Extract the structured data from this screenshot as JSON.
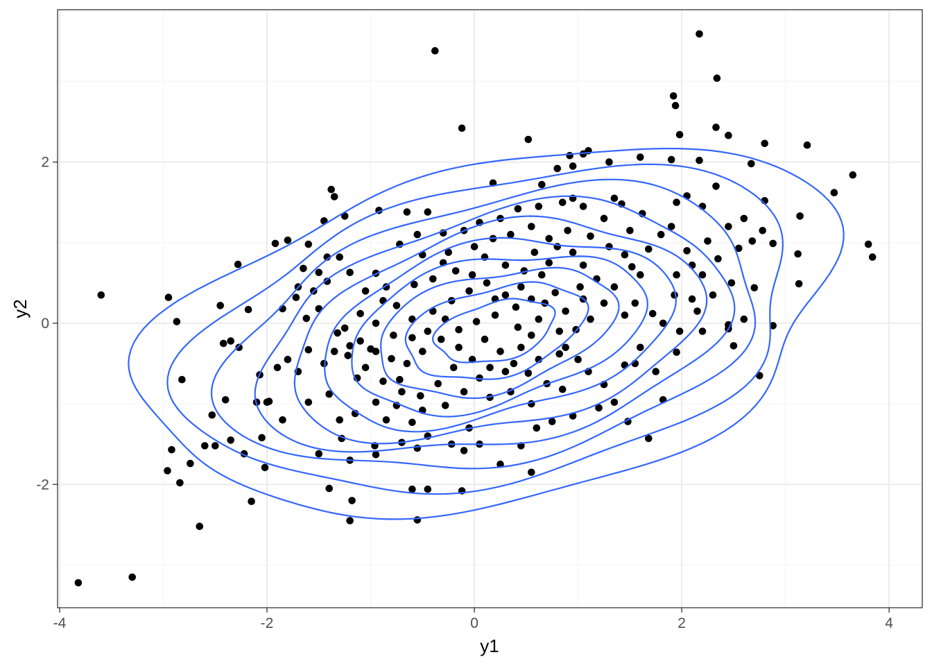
{
  "chart_data": {
    "type": "scatter",
    "overlay": "2d-density-contours",
    "xlabel": "y1",
    "ylabel": "y2",
    "xlim": [
      -4.02,
      4.32
    ],
    "ylim": [
      -3.53,
      3.89
    ],
    "x_ticks": [
      -4,
      -2,
      0,
      2,
      4
    ],
    "y_ticks": [
      -2,
      0,
      2
    ],
    "x_tick_labels": [
      "-4",
      "-2",
      "0",
      "2",
      "4"
    ],
    "y_tick_labels": [
      "-2",
      "0",
      "2"
    ],
    "grid": true,
    "theme": "bw",
    "colors": {
      "points": "#000000",
      "contours": "#3366FF",
      "grid_major": "#EBEBEB",
      "grid_minor": "#F5F5F5",
      "panel_border": "#333333"
    },
    "contour_params": {
      "center": [
        0.2,
        -0.1
      ],
      "angle_deg": 21,
      "sd_major": 1.33,
      "sd_minor": 0.78,
      "levels_r": [
        0.45,
        0.68,
        0.9,
        1.12,
        1.33,
        1.55,
        1.78,
        2.02,
        2.3,
        2.62
      ]
    },
    "points": [
      {
        "x": -3.82,
        "y": -3.22
      },
      {
        "x": -3.3,
        "y": -3.15
      },
      {
        "x": -3.6,
        "y": 0.35
      },
      {
        "x": -2.95,
        "y": 0.32
      },
      {
        "x": -2.87,
        "y": 0.02
      },
      {
        "x": -2.82,
        "y": -0.7
      },
      {
        "x": -2.65,
        "y": -2.52
      },
      {
        "x": -2.92,
        "y": -1.57
      },
      {
        "x": -2.96,
        "y": -1.83
      },
      {
        "x": -2.84,
        "y": -1.98
      },
      {
        "x": -2.74,
        "y": -1.74
      },
      {
        "x": -2.5,
        "y": -1.52
      },
      {
        "x": -2.53,
        "y": -1.14
      },
      {
        "x": -2.45,
        "y": 0.22
      },
      {
        "x": -2.35,
        "y": -0.22
      },
      {
        "x": -2.27,
        "y": -0.3
      },
      {
        "x": -2.28,
        "y": 0.73
      },
      {
        "x": -2.18,
        "y": 0.17
      },
      {
        "x": -2.07,
        "y": -0.64
      },
      {
        "x": -2.1,
        "y": -0.98
      },
      {
        "x": -2.15,
        "y": -2.21
      },
      {
        "x": -2.05,
        "y": -1.42
      },
      {
        "x": -2.02,
        "y": -1.79
      },
      {
        "x": -1.98,
        "y": -0.97
      },
      {
        "x": -1.92,
        "y": 0.99
      },
      {
        "x": -1.8,
        "y": 1.03
      },
      {
        "x": -0.38,
        "y": 3.38
      },
      {
        "x": 2.17,
        "y": 3.59
      },
      {
        "x": 2.34,
        "y": 3.04
      },
      {
        "x": 1.92,
        "y": 2.82
      },
      {
        "x": 1.94,
        "y": 2.7
      },
      {
        "x": -0.12,
        "y": 2.42
      },
      {
        "x": 0.52,
        "y": 2.28
      },
      {
        "x": 1.98,
        "y": 2.34
      },
      {
        "x": 2.33,
        "y": 2.43
      },
      {
        "x": 2.45,
        "y": 2.33
      },
      {
        "x": 2.8,
        "y": 2.23
      },
      {
        "x": 3.21,
        "y": 2.21
      },
      {
        "x": 2.67,
        "y": 1.98
      },
      {
        "x": 2.17,
        "y": 2.02
      },
      {
        "x": 1.9,
        "y": 2.03
      },
      {
        "x": 1.6,
        "y": 2.06
      },
      {
        "x": 1.3,
        "y": 2.0
      },
      {
        "x": 1.1,
        "y": 2.14
      },
      {
        "x": 0.92,
        "y": 2.08
      },
      {
        "x": 0.8,
        "y": 1.92
      },
      {
        "x": 0.18,
        "y": 1.74
      },
      {
        "x": -1.38,
        "y": 1.66
      },
      {
        "x": -1.35,
        "y": 1.57
      },
      {
        "x": 2.33,
        "y": 1.7
      },
      {
        "x": 3.47,
        "y": 1.62
      },
      {
        "x": 3.65,
        "y": 1.84
      },
      {
        "x": 3.8,
        "y": 0.98
      },
      {
        "x": 3.84,
        "y": 0.82
      },
      {
        "x": 3.14,
        "y": 1.33
      },
      {
        "x": 3.12,
        "y": 0.86
      },
      {
        "x": 3.13,
        "y": 0.49
      },
      {
        "x": 2.88,
        "y": 0.99
      },
      {
        "x": 2.8,
        "y": 1.52
      },
      {
        "x": 2.78,
        "y": 1.15
      },
      {
        "x": 2.68,
        "y": 1.02
      },
      {
        "x": 2.7,
        "y": 0.44
      },
      {
        "x": 2.55,
        "y": 0.93
      },
      {
        "x": 2.48,
        "y": 0.5
      },
      {
        "x": 2.88,
        "y": -0.03
      },
      {
        "x": 2.45,
        "y": -0.07
      },
      {
        "x": 2.5,
        "y": -0.28
      },
      {
        "x": 2.75,
        "y": -0.65
      },
      {
        "x": 2.2,
        "y": -0.1
      },
      {
        "x": 1.95,
        "y": -0.36
      },
      {
        "x": 1.82,
        "y": -0.95
      },
      {
        "x": 1.68,
        "y": -1.43
      },
      {
        "x": 1.48,
        "y": -1.22
      },
      {
        "x": -1.45,
        "y": 1.27
      },
      {
        "x": -1.25,
        "y": 1.33
      },
      {
        "x": -0.92,
        "y": 1.4
      },
      {
        "x": -0.65,
        "y": 1.38
      },
      {
        "x": -0.45,
        "y": 1.38
      },
      {
        "x": -1.65,
        "y": 0.68
      },
      {
        "x": -1.7,
        "y": 0.45
      },
      {
        "x": -1.72,
        "y": 0.32
      },
      {
        "x": -1.5,
        "y": 0.63
      },
      {
        "x": -1.42,
        "y": 0.52
      },
      {
        "x": -1.3,
        "y": 0.82
      },
      {
        "x": -1.2,
        "y": 0.63
      },
      {
        "x": -1.05,
        "y": 0.4
      },
      {
        "x": -0.88,
        "y": 0.28
      },
      {
        "x": -1.62,
        "y": 0.06
      },
      {
        "x": -1.5,
        "y": 0.18
      },
      {
        "x": -1.25,
        "y": -0.06
      },
      {
        "x": -1.6,
        "y": -0.33
      },
      {
        "x": -1.45,
        "y": -0.5
      },
      {
        "x": -1.35,
        "y": -0.35
      },
      {
        "x": -1.22,
        "y": -0.4
      },
      {
        "x": -1.1,
        "y": -0.22
      },
      {
        "x": -1.0,
        "y": -0.32
      },
      {
        "x": -0.8,
        "y": -0.44
      },
      {
        "x": -0.72,
        "y": -0.7
      },
      {
        "x": -1.6,
        "y": -0.98
      },
      {
        "x": -1.4,
        "y": -0.88
      },
      {
        "x": -1.13,
        "y": -0.68
      },
      {
        "x": -0.95,
        "y": -0.98
      },
      {
        "x": -0.75,
        "y": -1.02
      },
      {
        "x": -1.3,
        "y": -1.2
      },
      {
        "x": -1.15,
        "y": -1.12
      },
      {
        "x": -0.85,
        "y": -1.2
      },
      {
        "x": -0.6,
        "y": -1.23
      },
      {
        "x": -1.28,
        "y": -1.43
      },
      {
        "x": -0.96,
        "y": -1.52
      },
      {
        "x": -0.7,
        "y": -1.48
      },
      {
        "x": -0.45,
        "y": -1.4
      },
      {
        "x": -1.5,
        "y": -1.62
      },
      {
        "x": -1.2,
        "y": -1.7
      },
      {
        "x": -0.95,
        "y": -1.63
      },
      {
        "x": -0.55,
        "y": -1.55
      },
      {
        "x": -0.22,
        "y": -1.5
      },
      {
        "x": -1.4,
        "y": -2.05
      },
      {
        "x": -1.18,
        "y": -2.2
      },
      {
        "x": -1.2,
        "y": -2.45
      },
      {
        "x": -0.6,
        "y": -2.06
      },
      {
        "x": -0.45,
        "y": -2.06
      },
      {
        "x": -0.55,
        "y": -2.44
      },
      {
        "x": -0.1,
        "y": -1.58
      },
      {
        "x": 0.05,
        "y": -1.5
      },
      {
        "x": -0.05,
        "y": -1.3
      },
      {
        "x": 0.25,
        "y": -1.75
      },
      {
        "x": -0.12,
        "y": -2.08
      },
      {
        "x": 0.55,
        "y": -1.85
      },
      {
        "x": 0.45,
        "y": -1.52
      },
      {
        "x": 0.6,
        "y": -1.3
      },
      {
        "x": 0.75,
        "y": -1.22
      },
      {
        "x": 0.95,
        "y": -1.15
      },
      {
        "x": 1.2,
        "y": -1.05
      },
      {
        "x": 1.35,
        "y": -0.98
      },
      {
        "x": 1.25,
        "y": -0.76
      },
      {
        "x": 1.1,
        "y": -0.6
      },
      {
        "x": 1.0,
        "y": -0.45
      },
      {
        "x": 0.88,
        "y": -0.3
      },
      {
        "x": 0.82,
        "y": -0.1
      },
      {
        "x": 1.45,
        "y": -0.52
      },
      {
        "x": 1.55,
        "y": -0.5
      },
      {
        "x": 1.75,
        "y": -0.6
      },
      {
        "x": 1.6,
        "y": -0.3
      },
      {
        "x": 1.82,
        "y": 0.0
      },
      {
        "x": 1.72,
        "y": 0.12
      },
      {
        "x": 1.93,
        "y": 0.35
      },
      {
        "x": 1.55,
        "y": 0.25
      },
      {
        "x": 1.45,
        "y": 0.1
      },
      {
        "x": 1.35,
        "y": 0.45
      },
      {
        "x": 1.52,
        "y": 0.7
      },
      {
        "x": 1.68,
        "y": 0.92
      },
      {
        "x": 1.8,
        "y": 1.1
      },
      {
        "x": 1.9,
        "y": 1.2
      },
      {
        "x": 1.62,
        "y": 1.36
      },
      {
        "x": 1.42,
        "y": 1.48
      },
      {
        "x": 1.25,
        "y": 1.3
      },
      {
        "x": 1.05,
        "y": 1.45
      },
      {
        "x": 0.85,
        "y": 1.5
      },
      {
        "x": 0.62,
        "y": 1.45
      },
      {
        "x": 0.42,
        "y": 1.42
      },
      {
        "x": 0.25,
        "y": 1.3
      },
      {
        "x": 0.05,
        "y": 1.25
      },
      {
        "x": -0.1,
        "y": 1.15
      },
      {
        "x": -0.3,
        "y": 1.12
      },
      {
        "x": -0.55,
        "y": 1.1
      },
      {
        "x": -0.72,
        "y": 0.98
      },
      {
        "x": -0.5,
        "y": 0.85
      },
      {
        "x": -0.3,
        "y": 0.75
      },
      {
        "x": -0.18,
        "y": 0.65
      },
      {
        "x": 0.1,
        "y": 0.82
      },
      {
        "x": 0.3,
        "y": 0.72
      },
      {
        "x": 0.48,
        "y": 0.65
      },
      {
        "x": 0.65,
        "y": 0.6
      },
      {
        "x": 0.8,
        "y": 0.95
      },
      {
        "x": 0.95,
        "y": 0.88
      },
      {
        "x": 1.05,
        "y": 0.72
      },
      {
        "x": 1.18,
        "y": 0.55
      },
      {
        "x": 1.02,
        "y": 0.45
      },
      {
        "x": 0.78,
        "y": 0.38
      },
      {
        "x": 0.55,
        "y": 0.3
      },
      {
        "x": 0.4,
        "y": 0.2
      },
      {
        "x": 0.2,
        "y": 0.1
      },
      {
        "x": 0.02,
        "y": 0.02
      },
      {
        "x": -0.15,
        "y": -0.08
      },
      {
        "x": -0.32,
        "y": -0.2
      },
      {
        "x": -0.5,
        "y": -0.35
      },
      {
        "x": -0.65,
        "y": -0.5
      },
      {
        "x": 0.1,
        "y": -0.2
      },
      {
        "x": 0.25,
        "y": -0.35
      },
      {
        "x": 0.38,
        "y": -0.5
      },
      {
        "x": 0.52,
        "y": -0.62
      },
      {
        "x": 0.7,
        "y": -0.75
      },
      {
        "x": 0.55,
        "y": -0.15
      },
      {
        "x": 0.62,
        "y": 0.05
      },
      {
        "x": 0.42,
        "y": -0.05
      },
      {
        "x": 0.3,
        "y": 0.35
      },
      {
        "x": 0.12,
        "y": 0.5
      },
      {
        "x": -0.05,
        "y": 0.4
      },
      {
        "x": -0.22,
        "y": 0.28
      },
      {
        "x": -0.4,
        "y": 0.15
      },
      {
        "x": -0.6,
        "y": 0.05
      },
      {
        "x": -0.75,
        "y": 0.22
      },
      {
        "x": -0.85,
        "y": 0.45
      },
      {
        "x": -0.95,
        "y": 0.62
      },
      {
        "x": -0.58,
        "y": 0.48
      },
      {
        "x": -0.4,
        "y": 0.55
      },
      {
        "x": -0.25,
        "y": 0.88
      },
      {
        "x": 0.0,
        "y": 0.95
      },
      {
        "x": 0.18,
        "y": 1.05
      },
      {
        "x": 0.35,
        "y": 1.1
      },
      {
        "x": 0.55,
        "y": 1.2
      },
      {
        "x": 0.72,
        "y": 1.05
      },
      {
        "x": 0.9,
        "y": 1.15
      },
      {
        "x": 1.12,
        "y": 1.08
      },
      {
        "x": 1.3,
        "y": 0.95
      },
      {
        "x": 1.45,
        "y": 0.85
      },
      {
        "x": 1.6,
        "y": 0.6
      },
      {
        "x": 1.25,
        "y": 0.25
      },
      {
        "x": 1.12,
        "y": 0.05
      },
      {
        "x": 0.98,
        "y": -0.08
      },
      {
        "x": 0.82,
        "y": -0.38
      },
      {
        "x": 0.62,
        "y": -0.45
      },
      {
        "x": 0.45,
        "y": -0.3
      },
      {
        "x": 0.3,
        "y": -0.6
      },
      {
        "x": 0.15,
        "y": -0.55
      },
      {
        "x": -0.02,
        "y": -0.45
      },
      {
        "x": -0.2,
        "y": -0.55
      },
      {
        "x": -0.35,
        "y": -0.75
      },
      {
        "x": -0.52,
        "y": -0.9
      },
      {
        "x": -0.7,
        "y": -0.85
      },
      {
        "x": -0.88,
        "y": -0.72
      },
      {
        "x": -1.05,
        "y": -0.55
      },
      {
        "x": -1.2,
        "y": -0.28
      },
      {
        "x": -1.32,
        "y": -0.12
      },
      {
        "x": -1.1,
        "y": 0.12
      },
      {
        "x": -0.95,
        "y": 0.0
      },
      {
        "x": -0.78,
        "y": -0.15
      },
      {
        "x": -0.45,
        "y": -0.1
      },
      {
        "x": -0.28,
        "y": 0.05
      },
      {
        "x": 0.2,
        "y": 0.3
      },
      {
        "x": 0.45,
        "y": 0.45
      },
      {
        "x": 0.68,
        "y": 0.25
      },
      {
        "x": 0.88,
        "y": 0.15
      },
      {
        "x": 1.05,
        "y": 0.3
      },
      {
        "x": 2.05,
        "y": 0.9
      },
      {
        "x": 2.1,
        "y": 0.72
      },
      {
        "x": 1.95,
        "y": 0.6
      },
      {
        "x": 2.1,
        "y": 0.3
      },
      {
        "x": 1.98,
        "y": -0.1
      },
      {
        "x": 2.2,
        "y": 1.45
      },
      {
        "x": 2.05,
        "y": 1.58
      },
      {
        "x": 1.95,
        "y": 1.5
      },
      {
        "x": 1.5,
        "y": 1.15
      },
      {
        "x": 0.35,
        "y": -0.85
      },
      {
        "x": 0.15,
        "y": -0.92
      },
      {
        "x": -0.1,
        "y": -0.85
      },
      {
        "x": -0.28,
        "y": -1.02
      },
      {
        "x": -0.5,
        "y": -1.08
      },
      {
        "x": 0.55,
        "y": -1.0
      },
      {
        "x": 0.85,
        "y": -0.82
      },
      {
        "x": -1.7,
        "y": -0.6
      },
      {
        "x": -1.8,
        "y": -0.45
      },
      {
        "x": -1.9,
        "y": -0.55
      },
      {
        "x": -1.85,
        "y": 0.18
      },
      {
        "x": -1.55,
        "y": 0.4
      },
      {
        "x": -0.15,
        "y": -0.3
      },
      {
        "x": 0.05,
        "y": -0.68
      },
      {
        "x": 0.72,
        "y": 0.75
      },
      {
        "x": 0.58,
        "y": 0.88
      },
      {
        "x": -0.02,
        "y": 0.6
      },
      {
        "x": -0.6,
        "y": -0.18
      },
      {
        "x": -0.95,
        "y": -0.35
      },
      {
        "x": -1.42,
        "y": 0.82
      },
      {
        "x": -1.6,
        "y": 0.98
      },
      {
        "x": -2.4,
        "y": -0.95
      },
      {
        "x": -2.35,
        "y": -1.45
      },
      {
        "x": -2.22,
        "y": -1.62
      },
      {
        "x": -2.0,
        "y": -0.98
      },
      {
        "x": -1.85,
        "y": -1.2
      },
      {
        "x": -2.6,
        "y": -1.52
      },
      {
        "x": -2.42,
        "y": -0.25
      },
      {
        "x": 1.35,
        "y": 1.55
      },
      {
        "x": 0.95,
        "y": 1.55
      },
      {
        "x": 0.65,
        "y": 1.72
      },
      {
        "x": 1.05,
        "y": 2.1
      },
      {
        "x": 0.95,
        "y": 1.95
      },
      {
        "x": 2.6,
        "y": 1.3
      },
      {
        "x": 2.45,
        "y": 1.2
      },
      {
        "x": 2.25,
        "y": 1.02
      },
      {
        "x": 2.35,
        "y": 0.8
      },
      {
        "x": 2.2,
        "y": 0.6
      },
      {
        "x": 2.3,
        "y": 0.35
      },
      {
        "x": 2.15,
        "y": 0.15
      },
      {
        "x": 2.45,
        "y": -0.02
      },
      {
        "x": 2.6,
        "y": 0.05
      }
    ]
  }
}
